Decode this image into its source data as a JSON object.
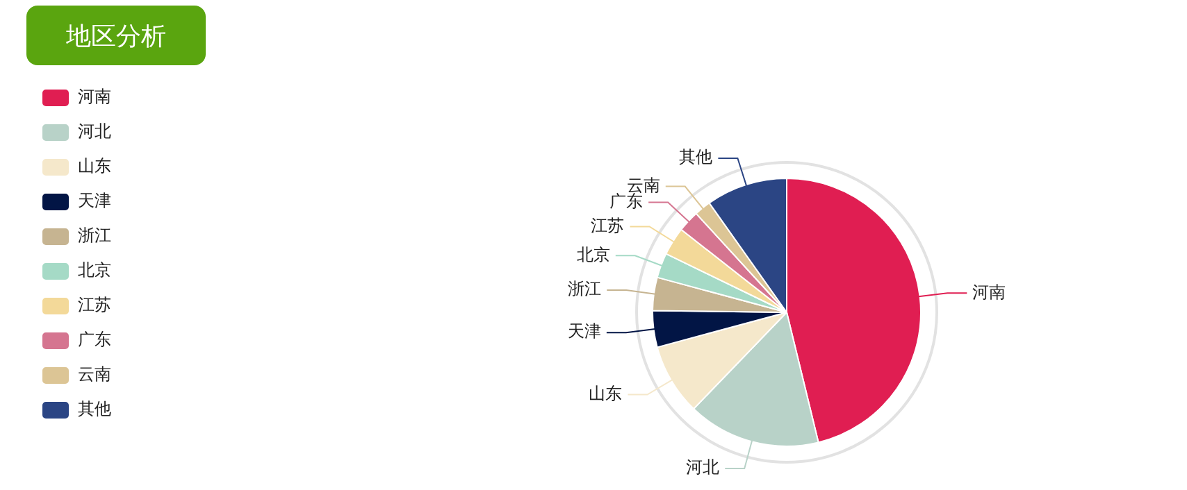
{
  "chart_data": {
    "type": "pie",
    "title": "地区分析",
    "legend": "top left",
    "categories": [
      "河南",
      "河北",
      "山东",
      "天津",
      "浙江",
      "北京",
      "江苏",
      "广东",
      "云南",
      "其他"
    ],
    "values": [
      46.2,
      16,
      8.6,
      4.4,
      4,
      3,
      3.4,
      2.6,
      2,
      9.8
    ],
    "colors": [
      "#e01e52",
      "#b8d2c8",
      "#f5e8cb",
      "#021545",
      "#c6b491",
      "#a5dac6",
      "#f3d999",
      "#d57590",
      "#dcc595",
      "#2b4584"
    ]
  }
}
